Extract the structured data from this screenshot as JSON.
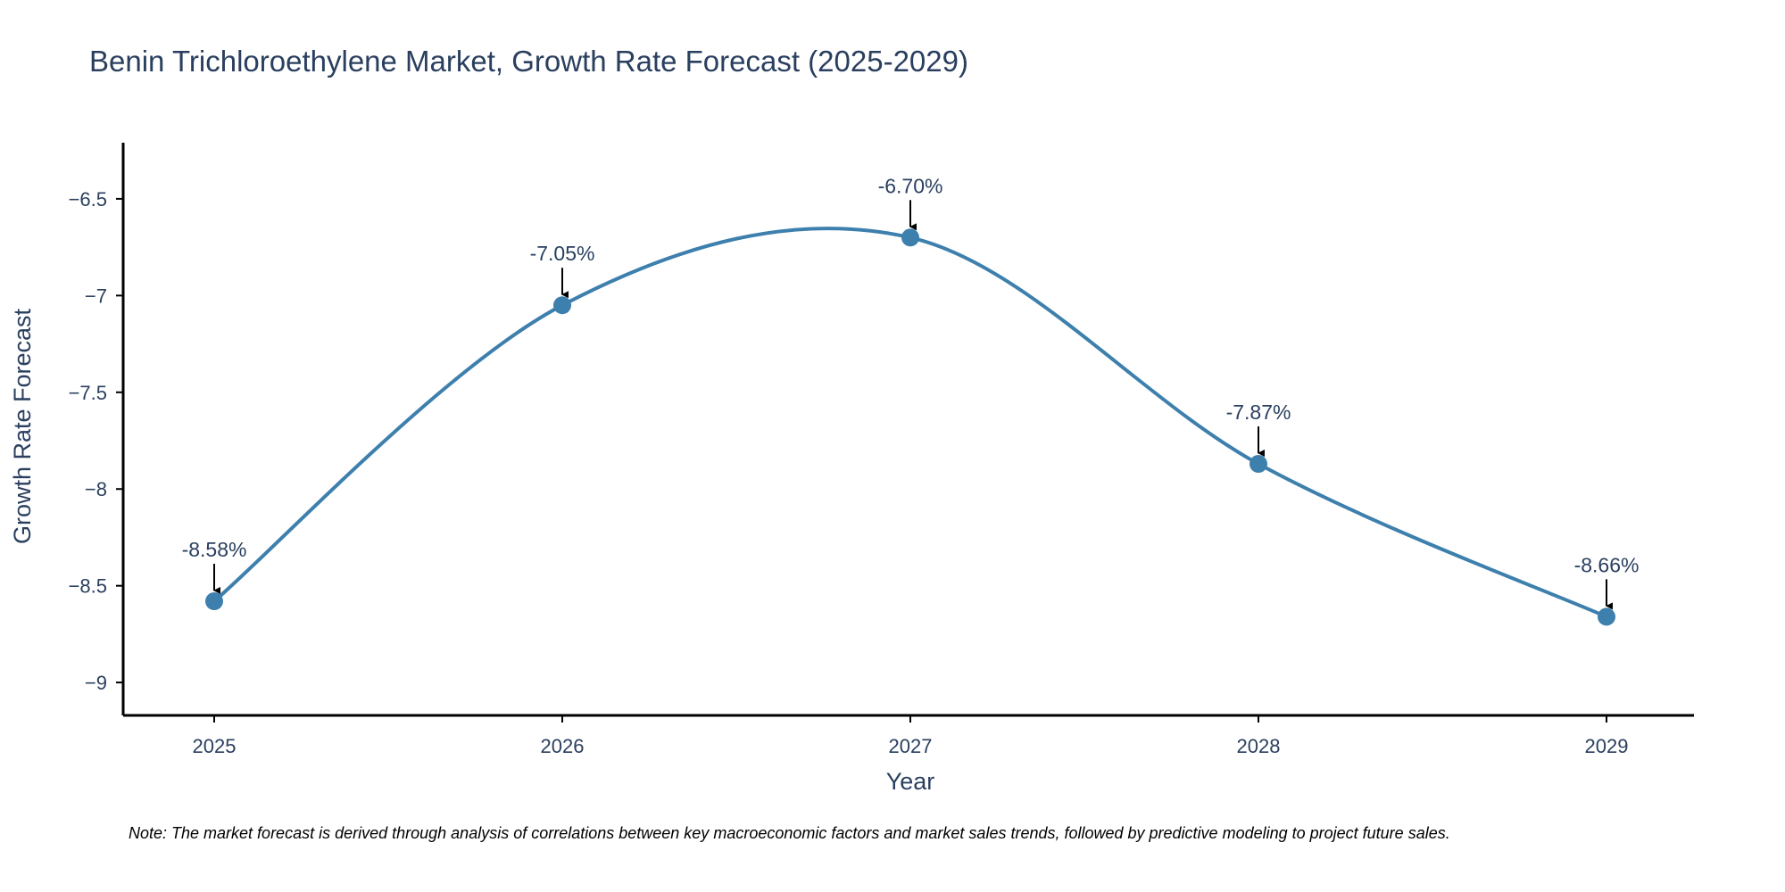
{
  "chart_data": {
    "type": "line",
    "title": "Benin Trichloroethylene Market, Growth Rate Forecast (2025-2029)",
    "xlabel": "Year",
    "ylabel": "Growth Rate Forecast",
    "categories": [
      "2025",
      "2026",
      "2027",
      "2028",
      "2029"
    ],
    "series": [
      {
        "name": "Growth Rate Forecast",
        "values": [
          -8.58,
          -7.05,
          -6.7,
          -7.87,
          -8.66
        ],
        "labels": [
          "-8.58%",
          "-7.05%",
          "-6.70%",
          "-7.87%",
          "-8.66%"
        ]
      }
    ],
    "ylim": [
      -9.17,
      -6.21
    ],
    "yticks": [
      -6.5,
      -7,
      -7.5,
      -8,
      -8.5,
      -9
    ],
    "ytick_labels": [
      "−6.5",
      "−7",
      "−7.5",
      "−8",
      "−8.5",
      "−9"
    ],
    "grid": false,
    "line_color": "#3d7fad",
    "marker_color": "#3d7fad",
    "note": "Note: The market forecast is derived through analysis of correlations between key macroeconomic factors and market sales trends, followed by predictive modeling to project future sales."
  }
}
